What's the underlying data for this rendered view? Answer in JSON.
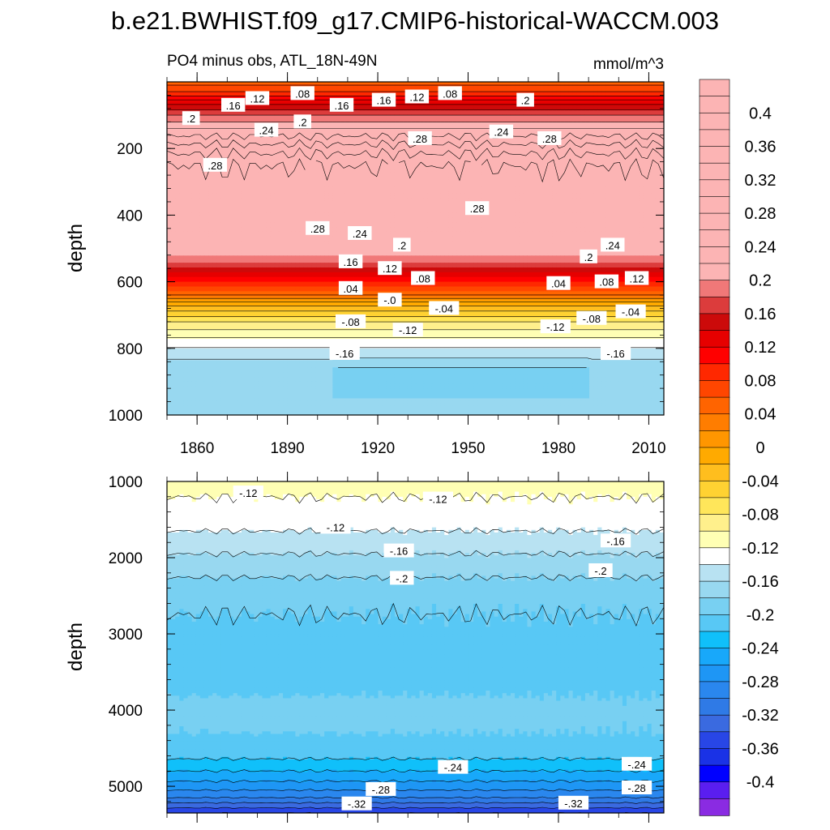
{
  "title": "b.e21.BWHIST.f09_g17.CMIP6-historical-WACCM.003",
  "subtitle_left": "PO4 minus obs, ATL_18N-49N",
  "subtitle_right": "mmol/m^3",
  "colors": {
    "palette": [
      "#8a2be2",
      "#5a1ef0",
      "#0000ff",
      "#1a32e6",
      "#2846e6",
      "#3a6ae0",
      "#2f7ae6",
      "#2a87ee",
      "#1e96f5",
      "#18a8fa",
      "#10c0fa",
      "#58c8f5",
      "#78d0f2",
      "#98d8f0",
      "#b8e2f2",
      "#ffffff",
      "#ffffb4",
      "#fff08c",
      "#ffe65a",
      "#ffd232",
      "#ffbe1e",
      "#ffaa00",
      "#ff9600",
      "#ff7d00",
      "#ff6400",
      "#ff4600",
      "#ff2800",
      "#ff0000",
      "#e60000",
      "#cc0a0a",
      "#dc3c3c",
      "#f07878",
      "#fcb4b4"
    ]
  },
  "chart_data": [
    {
      "type": "heatmap",
      "panel": "upper",
      "xlabel": "",
      "ylabel": "depth",
      "xlim": [
        1850,
        2015
      ],
      "ylim": [
        1000,
        0
      ],
      "x_ticks": [
        1860,
        1890,
        1920,
        1950,
        1980,
        2010
      ],
      "x_tick_labels": [
        "1860",
        "1890",
        "1920",
        "1950",
        "1980",
        "2010"
      ],
      "y_ticks": [
        200,
        400,
        600,
        800,
        1000
      ],
      "y_tick_labels": [
        "200",
        "400",
        "600",
        "800",
        "1000"
      ],
      "profile_depth": [
        0,
        30,
        60,
        100,
        150,
        200,
        250,
        300,
        350,
        400,
        450,
        500,
        550,
        600,
        640,
        660,
        680,
        720,
        780,
        850,
        920,
        1000
      ],
      "profile_value": [
        0.05,
        0.08,
        0.13,
        0.18,
        0.23,
        0.27,
        0.3,
        0.31,
        0.31,
        0.29,
        0.26,
        0.22,
        0.17,
        0.1,
        0.04,
        0.0,
        -0.03,
        -0.08,
        -0.13,
        -0.17,
        -0.18,
        -0.17
      ],
      "contour_labels": [
        {
          "text": ".12",
          "year": 1880,
          "depth": 50
        },
        {
          "text": ".08",
          "year": 1895,
          "depth": 35
        },
        {
          "text": ".16",
          "year": 1872,
          "depth": 70
        },
        {
          "text": ".2",
          "year": 1858,
          "depth": 110
        },
        {
          "text": ".24",
          "year": 1883,
          "depth": 145
        },
        {
          "text": ".2",
          "year": 1895,
          "depth": 120
        },
        {
          "text": ".16",
          "year": 1908,
          "depth": 70
        },
        {
          "text": ".16",
          "year": 1922,
          "depth": 55
        },
        {
          "text": ".12",
          "year": 1933,
          "depth": 45
        },
        {
          "text": ".08",
          "year": 1944,
          "depth": 35
        },
        {
          "text": ".2",
          "year": 1969,
          "depth": 55
        },
        {
          "text": ".28",
          "year": 1866,
          "depth": 250
        },
        {
          "text": ".28",
          "year": 1934,
          "depth": 170
        },
        {
          "text": ".24",
          "year": 1961,
          "depth": 150
        },
        {
          "text": ".28",
          "year": 1977,
          "depth": 170
        },
        {
          "text": ".28",
          "year": 1900,
          "depth": 440
        },
        {
          "text": ".28",
          "year": 1953,
          "depth": 380
        },
        {
          "text": ".24",
          "year": 1914,
          "depth": 455
        },
        {
          "text": ".2",
          "year": 1928,
          "depth": 490
        },
        {
          "text": ".2",
          "year": 1990,
          "depth": 525
        },
        {
          "text": ".24",
          "year": 1998,
          "depth": 490
        },
        {
          "text": ".16",
          "year": 1911,
          "depth": 540
        },
        {
          "text": ".12",
          "year": 1924,
          "depth": 560
        },
        {
          "text": ".08",
          "year": 1935,
          "depth": 590
        },
        {
          "text": ".04",
          "year": 1911,
          "depth": 620
        },
        {
          "text": "-.0",
          "year": 1924,
          "depth": 655
        },
        {
          "text": ".04",
          "year": 1980,
          "depth": 605
        },
        {
          "text": ".08",
          "year": 1996,
          "depth": 600
        },
        {
          "text": ".12",
          "year": 2006,
          "depth": 590
        },
        {
          "text": "-.04",
          "year": 1942,
          "depth": 680
        },
        {
          "text": "-.04",
          "year": 2004,
          "depth": 690
        },
        {
          "text": "-.08",
          "year": 1911,
          "depth": 720
        },
        {
          "text": "-.12",
          "year": 1930,
          "depth": 745
        },
        {
          "text": "-.08",
          "year": 1991,
          "depth": 710
        },
        {
          "text": "-.12",
          "year": 1979,
          "depth": 735
        },
        {
          "text": "-.16",
          "year": 1909,
          "depth": 815
        },
        {
          "text": "-.16",
          "year": 1999,
          "depth": 815
        }
      ]
    },
    {
      "type": "heatmap",
      "panel": "lower",
      "xlabel": "",
      "ylabel": "depth",
      "xlim": [
        1850,
        2015
      ],
      "ylim": [
        5350,
        1000
      ],
      "y_ticks": [
        1000,
        2000,
        3000,
        4000,
        5000
      ],
      "y_tick_labels": [
        "1000",
        "2000",
        "3000",
        "4000",
        "5000"
      ],
      "profile_depth": [
        1000,
        1200,
        1500,
        1800,
        2100,
        2500,
        3000,
        3500,
        4000,
        4300,
        4600,
        4800,
        5000,
        5150,
        5250,
        5350
      ],
      "profile_value": [
        -0.11,
        -0.12,
        -0.13,
        -0.15,
        -0.17,
        -0.195,
        -0.205,
        -0.21,
        -0.195,
        -0.2,
        -0.215,
        -0.24,
        -0.27,
        -0.3,
        -0.33,
        -0.36
      ],
      "contour_labels": [
        {
          "text": "-.12",
          "year": 1877,
          "depth": 1150
        },
        {
          "text": "-.12",
          "year": 1940,
          "depth": 1230
        },
        {
          "text": "-.12",
          "year": 1906,
          "depth": 1600
        },
        {
          "text": "-.16",
          "year": 1927,
          "depth": 1910
        },
        {
          "text": "-.16",
          "year": 1999,
          "depth": 1780
        },
        {
          "text": "-.2",
          "year": 1928,
          "depth": 2270
        },
        {
          "text": "-.2",
          "year": 1994,
          "depth": 2170
        },
        {
          "text": "-.24",
          "year": 1945,
          "depth": 4750
        },
        {
          "text": "-.24",
          "year": 2006,
          "depth": 4710
        },
        {
          "text": "-.28",
          "year": 1921,
          "depth": 5040
        },
        {
          "text": "-.28",
          "year": 2006,
          "depth": 5020
        },
        {
          "text": "-.32",
          "year": 1913,
          "depth": 5230
        },
        {
          "text": "-.32",
          "year": 1985,
          "depth": 5220
        }
      ]
    }
  ],
  "colorbar": {
    "labels": [
      "0.4",
      "0.36",
      "0.32",
      "0.28",
      "0.24",
      "0.2",
      "0.16",
      "0.12",
      "0.08",
      "0.04",
      "0",
      "-0.04",
      "-0.08",
      "-0.12",
      "-0.16",
      "-0.2",
      "-0.24",
      "-0.28",
      "-0.32",
      "-0.36",
      "-0.4"
    ],
    "min": -0.44,
    "max": 0.44,
    "step": 0.02,
    "label_values": [
      0.4,
      0.36,
      0.32,
      0.28,
      0.24,
      0.2,
      0.16,
      0.12,
      0.08,
      0.04,
      0,
      -0.04,
      -0.08,
      -0.12,
      -0.16,
      -0.2,
      -0.24,
      -0.28,
      -0.32,
      -0.36,
      -0.4
    ]
  }
}
